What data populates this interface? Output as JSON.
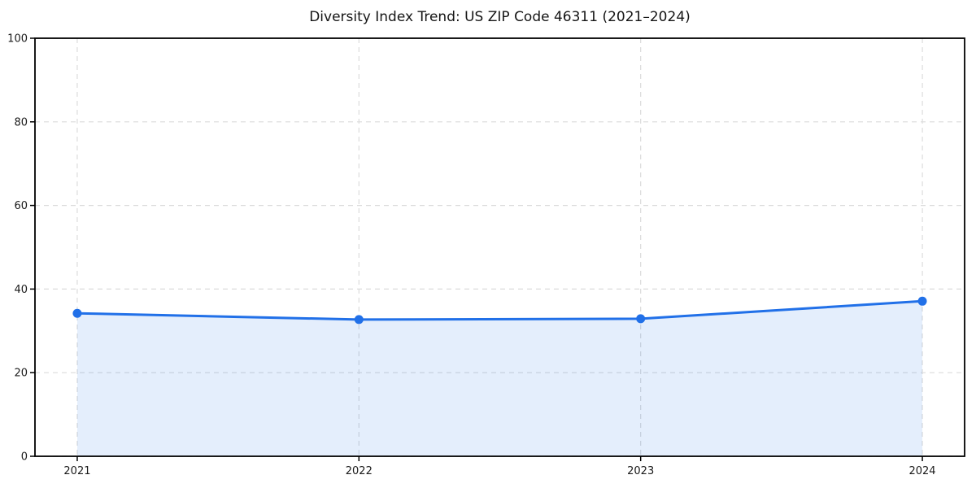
{
  "chart_data": {
    "type": "area",
    "title": "Diversity Index Trend: US ZIP Code 46311 (2021–2024)",
    "x": [
      2021,
      2022,
      2023,
      2024
    ],
    "x_tick_labels": [
      "2021",
      "2022",
      "2023",
      "2024"
    ],
    "series": [
      {
        "name": "Diversity Index",
        "values": [
          34.2,
          32.7,
          32.9,
          37.1
        ]
      }
    ],
    "ylim": [
      0,
      100
    ],
    "yticks": [
      0,
      20,
      40,
      60,
      80,
      100
    ],
    "ytick_labels": [
      "0",
      "20",
      "40",
      "60",
      "80",
      "100"
    ],
    "xlabel": "",
    "ylabel": "",
    "grid": true,
    "grid_line_style": "dashed",
    "legend_position": "none",
    "marker": "circle",
    "colors": {
      "line": "#2170e8",
      "marker": "#2170e8",
      "fill": "rgba(33,112,232,0.12)",
      "grid": "#dcdcdc",
      "axis": "#000000",
      "text": "#1a1a1a"
    }
  }
}
